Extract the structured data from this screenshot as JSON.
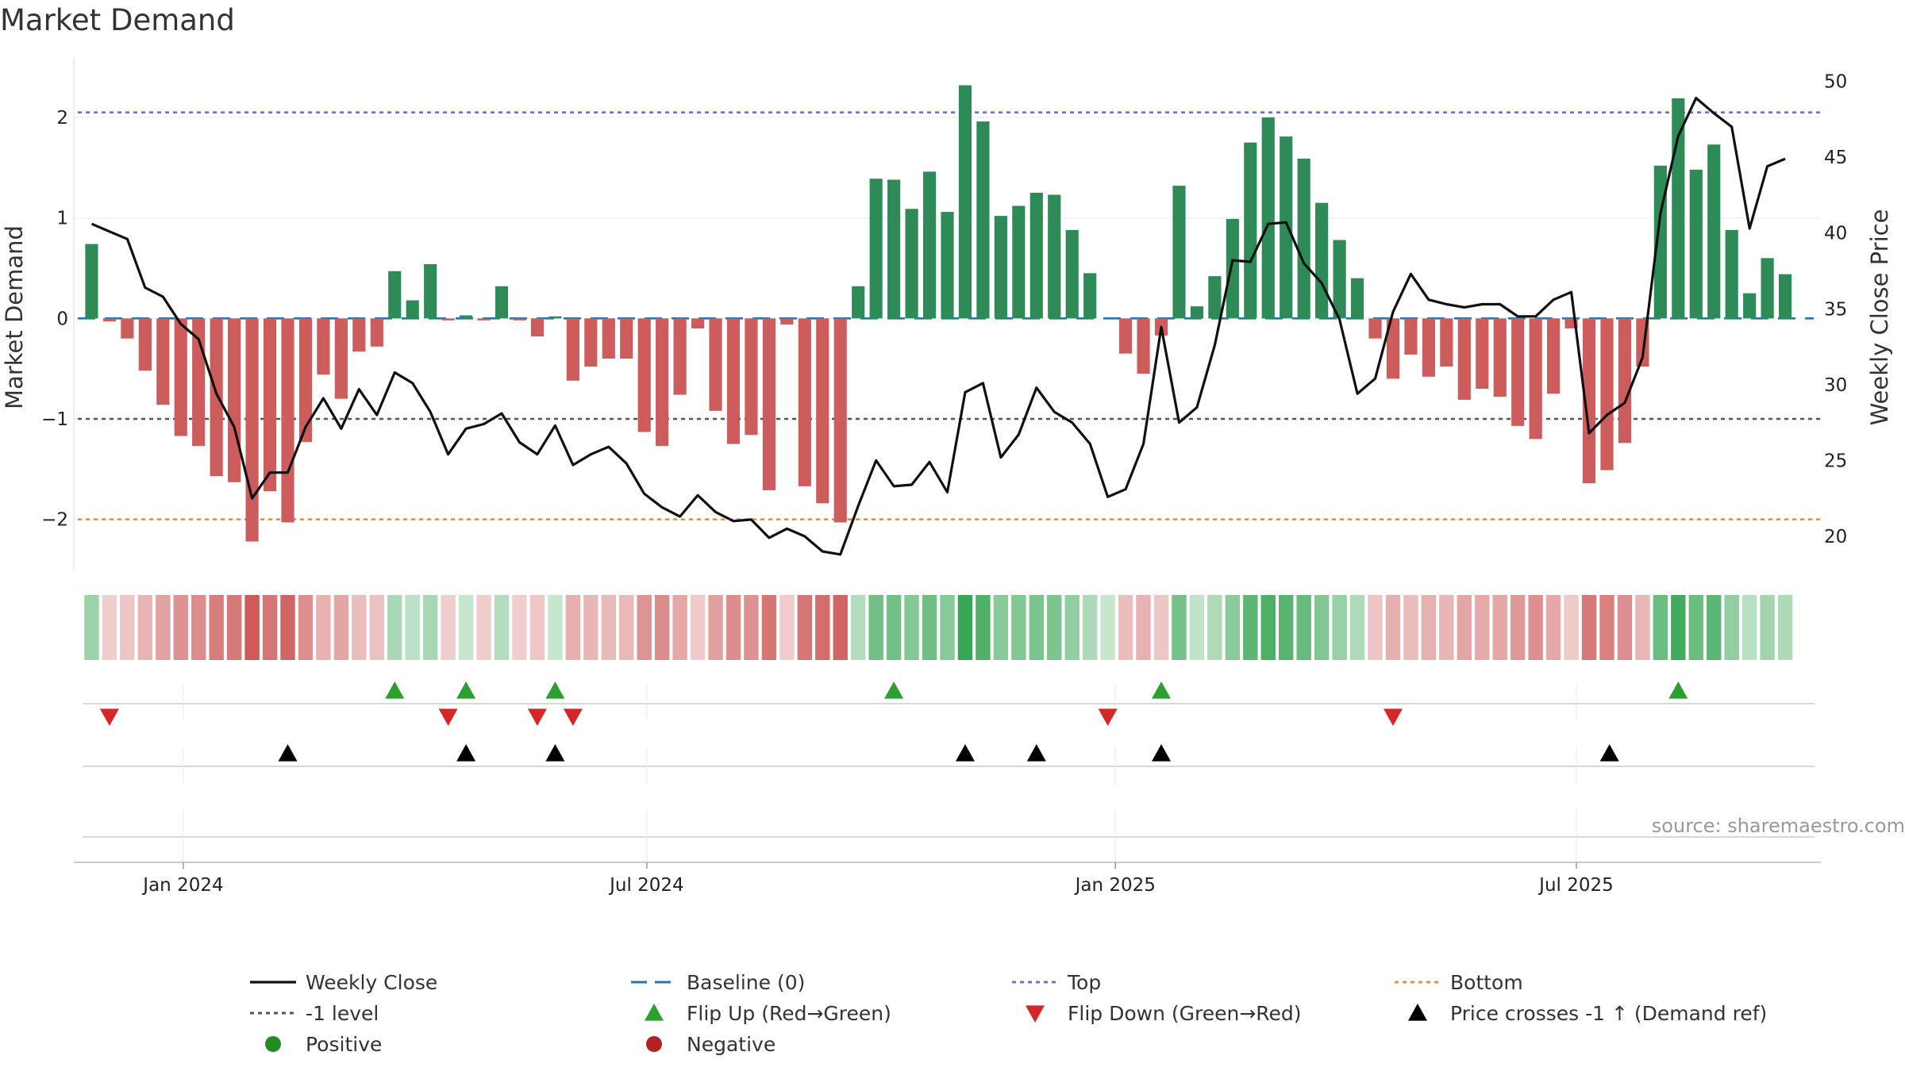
{
  "chart_data": {
    "type": "bar+line",
    "title": "Market Demand",
    "left_axis": {
      "label": "Market Demand",
      "range": [
        -2.5,
        2.6
      ],
      "ticks": [
        -2,
        -1,
        0,
        1,
        2
      ],
      "tick_labels": [
        "−2",
        "−1",
        "0",
        "1",
        "2"
      ]
    },
    "right_axis": {
      "label": "Weekly Close Price",
      "range": [
        17.8,
        51.6
      ],
      "ticks": [
        20,
        25,
        30,
        35,
        40,
        45,
        50
      ],
      "tick_labels": [
        "20",
        "25",
        "30",
        "35",
        "40",
        "45",
        "50"
      ]
    },
    "x_axis": {
      "start": "2023-11-19",
      "end": "2025-10-05",
      "ticks": [
        {
          "date": "2024-01-01",
          "label": "Jan 2024"
        },
        {
          "date": "2024-07-01",
          "label": "Jul 2024"
        },
        {
          "date": "2025-01-01",
          "label": "Jan 2025"
        },
        {
          "date": "2025-07-01",
          "label": "Jul 2025"
        }
      ]
    },
    "reference_lines": [
      {
        "name": "Top",
        "value": 2.05,
        "color": "#6f6fd0",
        "dash": "dot"
      },
      {
        "name": "Bottom",
        "value": -2.0,
        "color": "#e69138",
        "dash": "dot"
      },
      {
        "name": "-1 level",
        "value": -1.0,
        "color": "#555555",
        "dash": "dot"
      },
      {
        "name": "Baseline (0)",
        "value": 0,
        "color": "#1f77b4",
        "dash": "dash"
      }
    ],
    "series": [
      {
        "name": "Market Demand",
        "kind": "bar",
        "start": "2023-11-26",
        "interval_days": 7,
        "values": [
          0.74,
          -0.03,
          -0.2,
          -0.52,
          -0.86,
          -1.17,
          -1.27,
          -1.57,
          -1.63,
          -2.22,
          -1.72,
          -2.03,
          -1.23,
          -0.56,
          -0.8,
          -0.33,
          -0.28,
          0.47,
          0.18,
          0.54,
          -0.02,
          0.03,
          -0.02,
          0.32,
          -0.02,
          -0.18,
          0.02,
          -0.62,
          -0.48,
          -0.4,
          -0.4,
          -1.13,
          -1.27,
          -0.76,
          -0.1,
          -0.92,
          -1.25,
          -1.16,
          -1.71,
          -0.06,
          -1.67,
          -1.84,
          -2.03,
          0.32,
          1.39,
          1.38,
          1.09,
          1.46,
          1.06,
          2.32,
          1.96,
          1.02,
          1.12,
          1.25,
          1.23,
          0.88,
          0.45,
          0,
          -0.35,
          -0.55,
          -0.17,
          1.32,
          0.12,
          0.42,
          0.99,
          1.75,
          2.0,
          1.81,
          1.59,
          1.15,
          0.78,
          0.4,
          -0.2,
          -0.6,
          -0.36,
          -0.58,
          -0.48,
          -0.81,
          -0.7,
          -0.78,
          -1.07,
          -1.2,
          -0.75,
          -0.1,
          -1.64,
          -1.51,
          -1.24,
          -0.48,
          1.52,
          2.19,
          1.48,
          1.73,
          0.88,
          0.25,
          0.6,
          0.44
        ]
      },
      {
        "name": "Weekly Close",
        "kind": "line",
        "start": "2023-11-26",
        "interval_days": 7,
        "values": [
          40.6,
          40.1,
          39.6,
          36.4,
          35.8,
          34.0,
          33.0,
          29.4,
          27.2,
          22.5,
          24.2,
          24.2,
          27.2,
          29.1,
          27.1,
          29.7,
          28.0,
          30.8,
          30.1,
          28.2,
          25.4,
          27.1,
          27.4,
          28.1,
          26.2,
          25.4,
          27.3,
          24.7,
          25.4,
          25.9,
          24.8,
          22.8,
          21.9,
          21.3,
          22.7,
          21.6,
          21.0,
          21.1,
          19.9,
          20.5,
          20.0,
          19.0,
          18.8,
          22.0,
          25.0,
          23.3,
          23.4,
          24.9,
          22.9,
          29.5,
          30.1,
          25.2,
          26.7,
          29.8,
          28.2,
          27.5,
          26.1,
          22.6,
          23.1,
          26.1,
          33.8,
          27.5,
          28.5,
          32.6,
          38.2,
          38.1,
          40.6,
          40.7,
          38.0,
          36.7,
          34.3,
          29.4,
          30.4,
          34.8,
          37.3,
          35.6,
          35.3,
          35.1,
          35.3,
          35.3,
          34.5,
          34.5,
          35.6,
          36.1,
          26.8,
          28.0,
          28.8,
          31.8,
          41.3,
          46.4,
          48.9,
          47.9,
          47.0,
          40.3,
          44.4,
          44.9
        ]
      }
    ],
    "heat_strip": {
      "description": "Per-week demand color band (green positive, red negative, intensity = magnitude)"
    },
    "signal_rows": [
      {
        "name": "Flip Up (Red→Green)",
        "marker": "triangle-up",
        "color": "#2ca02c",
        "dates": [
          "2024-03-24",
          "2024-04-21",
          "2024-05-26",
          "2024-10-06",
          "2025-01-19",
          "2025-08-10"
        ]
      },
      {
        "name": "Flip Down (Green→Red)",
        "marker": "triangle-down",
        "color": "#d62728",
        "dates": [
          "2023-12-03",
          "2024-04-14",
          "2024-05-19",
          "2024-06-02",
          "2024-12-29",
          "2025-04-20"
        ]
      },
      {
        "name": "Price crosses -1 ↑ (Demand ref)",
        "marker": "triangle-up",
        "color": "#000000",
        "dates": [
          "2024-02-11",
          "2024-04-21",
          "2024-05-26",
          "2024-11-03",
          "2024-12-01",
          "2025-01-19",
          "2025-07-14"
        ]
      }
    ],
    "annotation": "source: sharemaestro.com",
    "legend": {
      "placement": "bottom",
      "items": [
        {
          "label": "Weekly Close",
          "symbol": "line",
          "color": "#111111"
        },
        {
          "label": "Baseline (0)",
          "symbol": "dash",
          "color": "#1f77b4"
        },
        {
          "label": "Top",
          "symbol": "dot",
          "color": "#6f6fd0"
        },
        {
          "label": "Bottom",
          "symbol": "dot",
          "color": "#e69138"
        },
        {
          "label": "-1 level",
          "symbol": "dot",
          "color": "#555555"
        },
        {
          "label": "Flip Up (Red→Green)",
          "symbol": "triangle-up",
          "color": "#2ca02c"
        },
        {
          "label": "Flip Down (Green→Red)",
          "symbol": "triangle-down",
          "color": "#d62728"
        },
        {
          "label": "Price crosses -1 ↑ (Demand ref)",
          "symbol": "triangle-up",
          "color": "#000000"
        },
        {
          "label": "Positive",
          "symbol": "circle",
          "color": "#228b22"
        },
        {
          "label": "Negative",
          "symbol": "circle",
          "color": "#b22222"
        }
      ]
    },
    "colors": {
      "positive_bar": "#2e8b57",
      "negative_bar": "#cd5c5c",
      "line": "#111111"
    }
  }
}
